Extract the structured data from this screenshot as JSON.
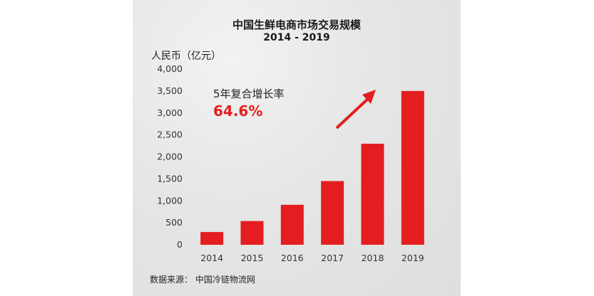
{
  "chart_data": {
    "type": "bar",
    "title": "中国生鲜电商市场交易规模",
    "subtitle": "2014 - 2019",
    "ylabel": "人民币（亿元）",
    "xlabel": "",
    "categories": [
      "2014",
      "2015",
      "2016",
      "2017",
      "2018",
      "2019"
    ],
    "values": [
      290,
      540,
      910,
      1450,
      2300,
      3500
    ],
    "ylim": [
      0,
      4000
    ],
    "yticks": [
      "0",
      "500",
      "1,000",
      "1,500",
      "2,000",
      "2,500",
      "3,000",
      "3,500",
      "4,000"
    ],
    "grid": false,
    "bar_color": "#e41e20",
    "annotation": {
      "label": "5年复合增长率",
      "value": "64.6%",
      "value_color": "#e1201f",
      "arrow": "up-right"
    },
    "source": "数据来源：  中国冷链物流网"
  }
}
